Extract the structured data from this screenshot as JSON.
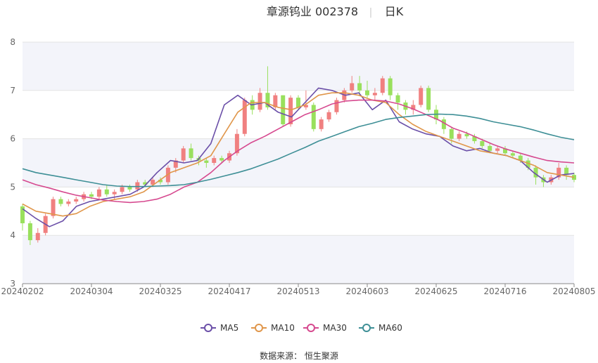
{
  "chart_data": {
    "type": "candlestick",
    "title": "章源钨业 002378",
    "title_sep": "|",
    "period_label": "日K",
    "x_ticks": [
      "20240202",
      "20240304",
      "20240325",
      "20240417",
      "20240513",
      "20240603",
      "20240625",
      "20240716",
      "20240805"
    ],
    "y_ticks": [
      "3",
      "4",
      "5",
      "6",
      "7",
      "8"
    ],
    "ylim": [
      3,
      8
    ],
    "source": "数据来源： 恒生聚源",
    "colors": {
      "up": "#f08080",
      "down": "#99e05d",
      "ma5": "#6b4fa8",
      "ma10": "#e0964a",
      "ma30": "#d6498f",
      "ma60": "#3e8f96"
    },
    "series": [
      {
        "name": "MA5",
        "values": [
          4.55,
          4.35,
          4.18,
          4.3,
          4.6,
          4.7,
          4.75,
          4.8,
          4.85,
          5.0,
          5.3,
          5.55,
          5.5,
          5.55,
          5.9,
          6.7,
          6.9,
          6.7,
          6.75,
          6.55,
          6.45,
          6.75,
          7.05,
          7.0,
          6.9,
          6.95,
          6.6,
          6.8,
          6.35,
          6.2,
          6.1,
          6.05,
          5.85,
          5.75,
          5.8,
          5.7,
          5.65,
          5.55,
          5.3,
          5.1,
          5.25,
          5.28
        ]
      },
      {
        "name": "MA10",
        "values": [
          4.65,
          4.5,
          4.45,
          4.4,
          4.45,
          4.6,
          4.7,
          4.75,
          4.8,
          4.9,
          5.1,
          5.3,
          5.4,
          5.5,
          5.65,
          6.1,
          6.55,
          6.75,
          6.75,
          6.65,
          6.6,
          6.7,
          6.9,
          6.95,
          6.95,
          6.9,
          6.8,
          6.75,
          6.5,
          6.3,
          6.15,
          6.05,
          5.95,
          5.85,
          5.75,
          5.7,
          5.65,
          5.55,
          5.45,
          5.3,
          5.25,
          5.2
        ]
      },
      {
        "name": "MA30",
        "values": [
          5.15,
          5.05,
          4.98,
          4.9,
          4.83,
          4.78,
          4.73,
          4.7,
          4.68,
          4.7,
          4.75,
          4.85,
          5.0,
          5.1,
          5.3,
          5.55,
          5.75,
          5.92,
          6.05,
          6.2,
          6.35,
          6.5,
          6.6,
          6.72,
          6.78,
          6.8,
          6.8,
          6.78,
          6.72,
          6.62,
          6.5,
          6.38,
          6.22,
          6.12,
          6.0,
          5.88,
          5.78,
          5.7,
          5.62,
          5.55,
          5.52,
          5.5
        ]
      },
      {
        "name": "MA60",
        "values": [
          5.38,
          5.3,
          5.25,
          5.2,
          5.15,
          5.1,
          5.05,
          5.02,
          5.01,
          5.01,
          5.02,
          5.03,
          5.05,
          5.1,
          5.16,
          5.23,
          5.3,
          5.38,
          5.48,
          5.58,
          5.7,
          5.82,
          5.95,
          6.05,
          6.15,
          6.25,
          6.32,
          6.4,
          6.44,
          6.47,
          6.5,
          6.51,
          6.5,
          6.47,
          6.42,
          6.35,
          6.3,
          6.25,
          6.18,
          6.1,
          6.03,
          5.98
        ]
      }
    ],
    "candles": [
      [
        4.6,
        4.25,
        4.65,
        4.1
      ],
      [
        4.25,
        3.9,
        4.3,
        3.8
      ],
      [
        3.9,
        4.05,
        4.15,
        3.85
      ],
      [
        4.05,
        4.4,
        4.45,
        4.0
      ],
      [
        4.4,
        4.75,
        4.8,
        4.35
      ],
      [
        4.75,
        4.65,
        4.8,
        4.6
      ],
      [
        4.65,
        4.7,
        4.75,
        4.6
      ],
      [
        4.7,
        4.75,
        4.8,
        4.65
      ],
      [
        4.75,
        4.85,
        4.9,
        4.7
      ],
      [
        4.85,
        4.8,
        4.9,
        4.75
      ],
      [
        4.8,
        4.95,
        5.0,
        4.75
      ],
      [
        4.95,
        4.85,
        5.05,
        4.8
      ],
      [
        4.85,
        4.9,
        4.95,
        4.75
      ],
      [
        4.9,
        5.0,
        5.05,
        4.85
      ],
      [
        5.0,
        4.95,
        5.05,
        4.9
      ],
      [
        4.95,
        5.1,
        5.15,
        4.9
      ],
      [
        5.1,
        5.05,
        5.15,
        5.0
      ],
      [
        5.05,
        5.15,
        5.2,
        5.0
      ],
      [
        5.15,
        5.1,
        5.2,
        5.05
      ],
      [
        5.1,
        5.4,
        5.45,
        5.05
      ],
      [
        5.4,
        5.55,
        5.6,
        5.3
      ],
      [
        5.55,
        5.8,
        5.85,
        5.5
      ],
      [
        5.8,
        5.6,
        5.9,
        5.55
      ],
      [
        5.6,
        5.55,
        5.65,
        5.45
      ],
      [
        5.55,
        5.5,
        5.6,
        5.4
      ],
      [
        5.5,
        5.6,
        5.65,
        5.45
      ],
      [
        5.6,
        5.55,
        5.65,
        5.5
      ],
      [
        5.55,
        5.7,
        5.75,
        5.5
      ],
      [
        5.7,
        6.1,
        6.2,
        5.65
      ],
      [
        6.1,
        6.8,
        6.85,
        6.05
      ],
      [
        6.8,
        6.6,
        6.9,
        6.5
      ],
      [
        6.6,
        6.95,
        7.05,
        6.55
      ],
      [
        6.95,
        6.65,
        7.5,
        6.6
      ],
      [
        6.65,
        6.9,
        6.95,
        6.6
      ],
      [
        6.9,
        6.3,
        6.9,
        6.25
      ],
      [
        6.3,
        6.85,
        6.9,
        6.25
      ],
      [
        6.85,
        6.65,
        6.9,
        6.6
      ],
      [
        6.65,
        6.7,
        7.0,
        6.6
      ],
      [
        6.7,
        6.2,
        6.75,
        6.15
      ],
      [
        6.2,
        6.4,
        6.45,
        6.15
      ],
      [
        6.4,
        6.55,
        6.6,
        6.35
      ],
      [
        6.55,
        6.8,
        6.85,
        6.5
      ],
      [
        6.8,
        7.0,
        7.05,
        6.75
      ],
      [
        7.0,
        7.15,
        7.3,
        6.95
      ],
      [
        7.15,
        7.0,
        7.3,
        6.9
      ],
      [
        7.0,
        6.9,
        7.2,
        6.85
      ],
      [
        6.9,
        6.95,
        7.05,
        6.8
      ],
      [
        6.95,
        7.25,
        7.3,
        6.9
      ],
      [
        7.25,
        6.9,
        7.3,
        6.8
      ],
      [
        6.9,
        6.75,
        6.95,
        6.6
      ],
      [
        6.75,
        6.6,
        6.8,
        6.5
      ],
      [
        6.6,
        6.7,
        6.8,
        6.5
      ],
      [
        6.7,
        7.05,
        7.1,
        6.65
      ],
      [
        7.05,
        6.6,
        7.1,
        6.55
      ],
      [
        6.6,
        6.4,
        6.7,
        6.3
      ],
      [
        6.4,
        6.2,
        6.45,
        6.1
      ],
      [
        6.2,
        6.0,
        6.25,
        5.9
      ],
      [
        6.0,
        6.1,
        6.15,
        5.95
      ],
      [
        6.1,
        6.05,
        6.15,
        6.0
      ],
      [
        6.05,
        5.95,
        6.1,
        5.9
      ],
      [
        5.95,
        5.85,
        6.0,
        5.8
      ],
      [
        5.85,
        5.75,
        5.9,
        5.7
      ],
      [
        5.75,
        5.8,
        5.85,
        5.7
      ],
      [
        5.8,
        5.7,
        5.85,
        5.65
      ],
      [
        5.7,
        5.65,
        5.75,
        5.6
      ],
      [
        5.65,
        5.55,
        5.7,
        5.5
      ],
      [
        5.55,
        5.4,
        5.6,
        5.35
      ],
      [
        5.4,
        5.2,
        5.45,
        5.05
      ],
      [
        5.2,
        5.1,
        5.25,
        5.0
      ],
      [
        5.1,
        5.2,
        5.25,
        5.05
      ],
      [
        5.2,
        5.4,
        5.5,
        5.15
      ],
      [
        5.4,
        5.25,
        5.45,
        5.15
      ],
      [
        5.25,
        5.15,
        5.3,
        5.1
      ]
    ],
    "legend_position": "bottom"
  }
}
